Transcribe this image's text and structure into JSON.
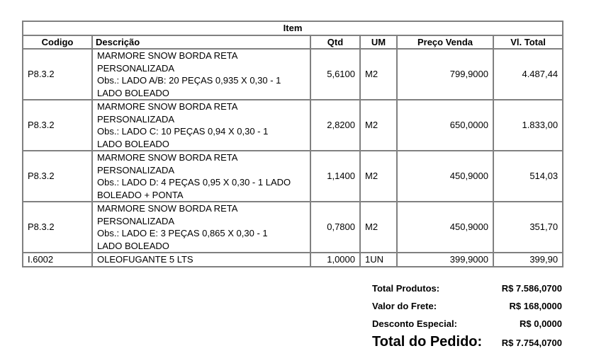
{
  "table": {
    "group_header": "Item",
    "columns": [
      "Codigo",
      "Descrição",
      "Qtd",
      "UM",
      "Preço Venda",
      "Vl. Total"
    ],
    "rows": [
      {
        "codigo": "P8.3.2",
        "descricao": [
          "MARMORE SNOW BORDA RETA",
          "PERSONALIZADA",
          "Obs.: LADO A/B: 20 PEÇAS 0,935 X 0,30 - 1",
          "LADO BOLEADO"
        ],
        "qtd": "5,6100",
        "um": "M2",
        "preco": "799,9000",
        "total": "4.487,44"
      },
      {
        "codigo": "P8.3.2",
        "descricao": [
          "MARMORE SNOW BORDA RETA",
          "PERSONALIZADA",
          "Obs.: LADO C: 10 PEÇAS 0,94 X 0,30 - 1",
          "LADO BOLEADO"
        ],
        "qtd": "2,8200",
        "um": "M2",
        "preco": "650,0000",
        "total": "1.833,00"
      },
      {
        "codigo": "P8.3.2",
        "descricao": [
          "MARMORE SNOW BORDA RETA",
          "PERSONALIZADA",
          "Obs.: LADO D: 4 PEÇAS 0,95 X 0,30 - 1 LADO",
          "BOLEADO + PONTA"
        ],
        "qtd": "1,1400",
        "um": "M2",
        "preco": "450,9000",
        "total": "514,03"
      },
      {
        "codigo": "P8.3.2",
        "descricao": [
          "MARMORE SNOW BORDA RETA",
          "PERSONALIZADA",
          "Obs.: LADO E: 3 PEÇAS 0,865 X 0,30 - 1",
          "LADO BOLEADO"
        ],
        "qtd": "0,7800",
        "um": "M2",
        "preco": "450,9000",
        "total": "351,70"
      },
      {
        "codigo": "I.6002",
        "descricao": [
          "OLEOFUGANTE 5 LTS"
        ],
        "qtd": "1,0000",
        "um": "1UN",
        "preco": "399,9000",
        "total": "399,90"
      }
    ]
  },
  "totals": {
    "produtos_label": "Total Produtos:",
    "produtos": "R$ 7.586,0700",
    "frete_label": "Valor do Frete:",
    "frete": "R$ 168,0000",
    "desconto_label": "Desconto Especial:",
    "desconto": "R$ 0,0000",
    "pedido_label": "Total do Pedido:",
    "pedido": "R$ 7.754,0700"
  }
}
